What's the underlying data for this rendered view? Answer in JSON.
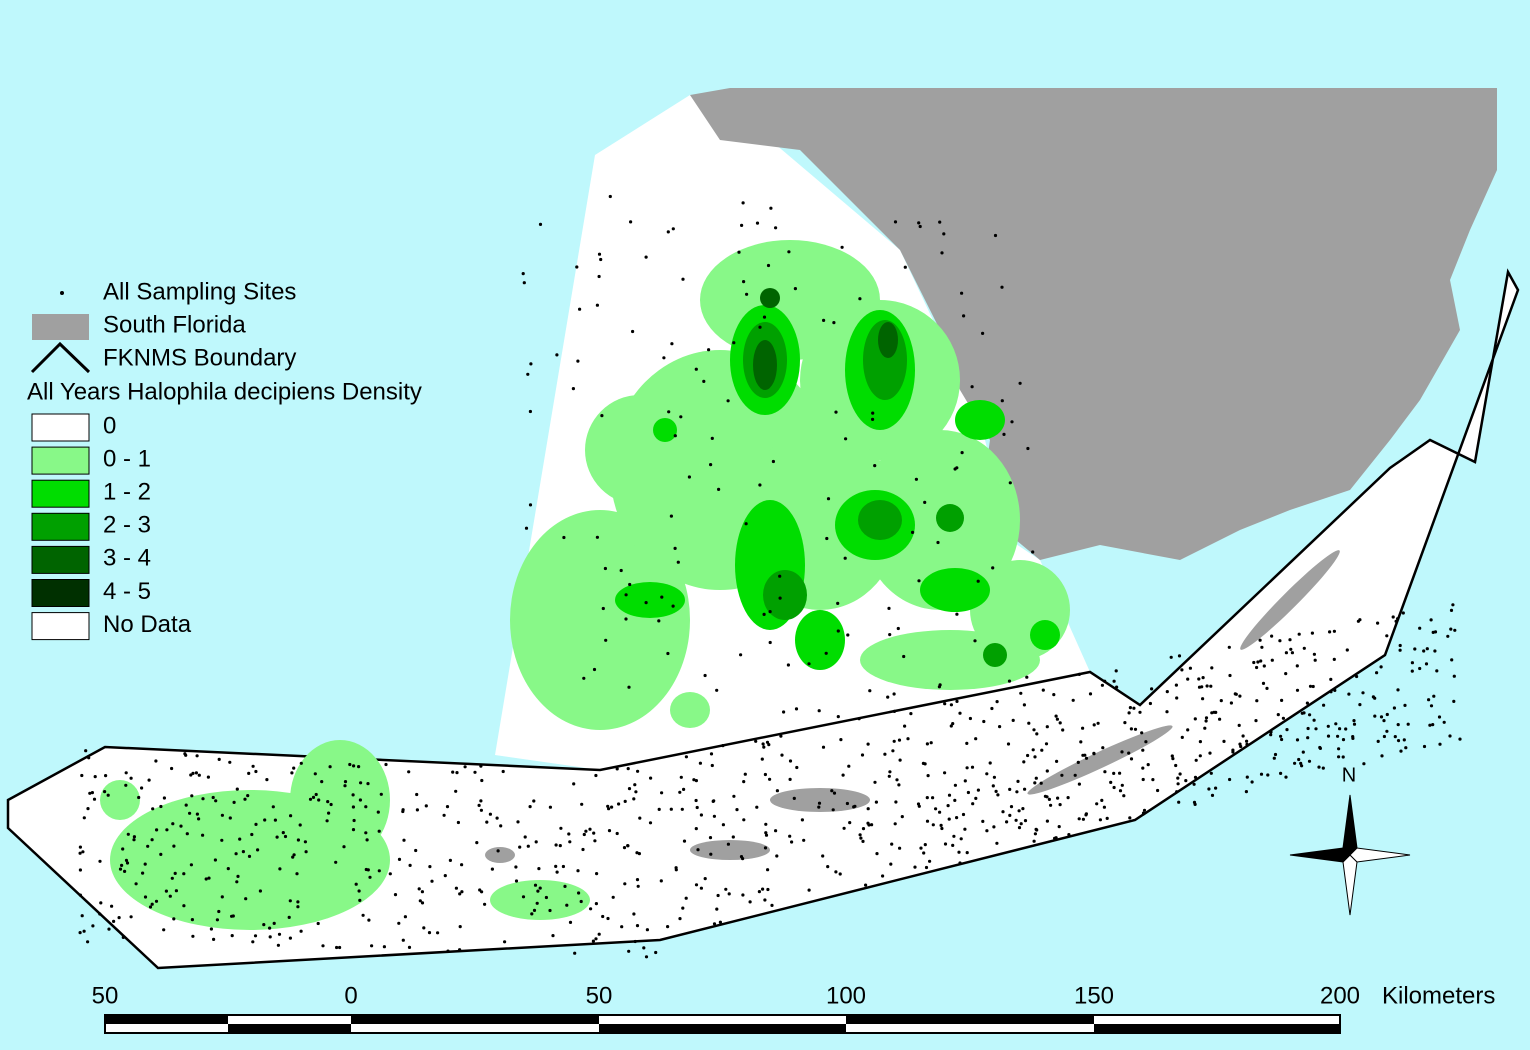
{
  "legend": {
    "sites": "All Sampling Sites",
    "land": {
      "label": "South Florida",
      "color": "#a0a0a0"
    },
    "boundary": "FKNMS Boundary",
    "title": "All Years Halophila decipiens Density",
    "items": [
      {
        "label": "0",
        "color": "#ffffff"
      },
      {
        "label": "0 - 1",
        "color": "#88f888"
      },
      {
        "label": "1 - 2",
        "color": "#00dd00"
      },
      {
        "label": "2 - 3",
        "color": "#00a000"
      },
      {
        "label": "3 - 4",
        "color": "#006400"
      },
      {
        "label": "4 - 5",
        "color": "#003000"
      },
      {
        "label": "No Data",
        "color": "#ffffff"
      }
    ]
  },
  "compass": "N",
  "scale_bar": {
    "labels": [
      "50",
      "0",
      "50",
      "100",
      "150",
      "200"
    ],
    "unit": "Kilometers"
  }
}
